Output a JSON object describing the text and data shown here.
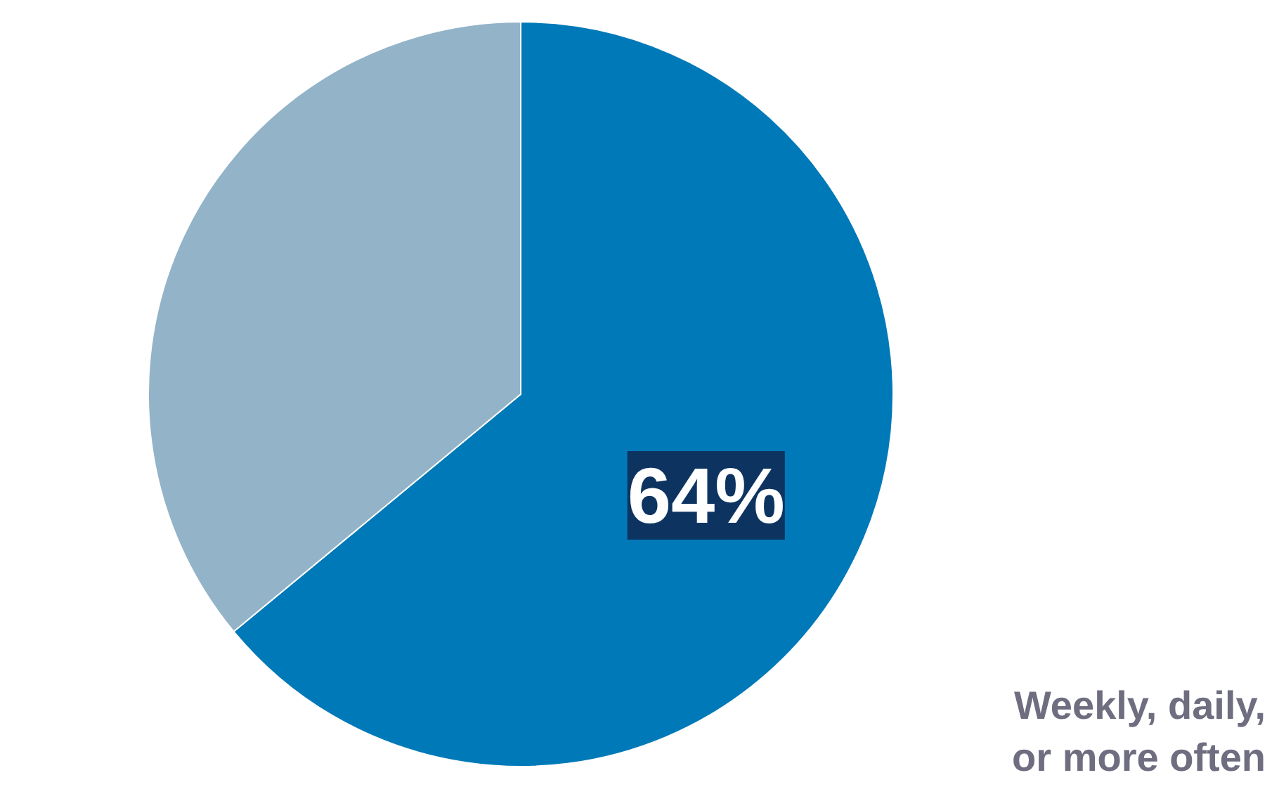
{
  "chart_data": {
    "type": "pie",
    "categories": [
      "Weekly, daily,\nor more often",
      null
    ],
    "values": [
      64,
      36
    ],
    "colors": [
      "#0079b8",
      "#93b3c8"
    ],
    "value_labels": [
      "64%",
      null
    ]
  }
}
